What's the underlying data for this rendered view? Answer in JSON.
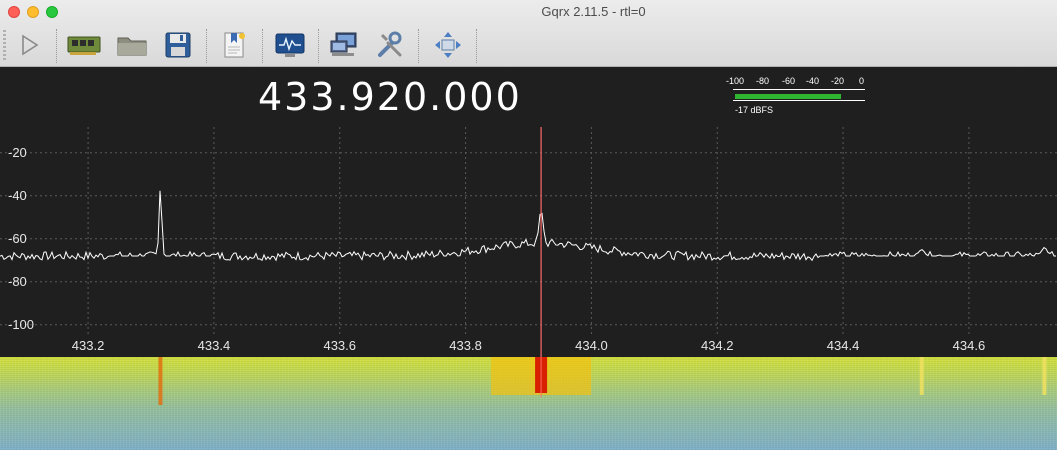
{
  "window": {
    "title": "Gqrx 2.11.5 - rtl=0"
  },
  "toolbar": {
    "buttons": [
      {
        "name": "start-dsp",
        "icon": "play-icon"
      },
      {
        "name": "io-devices",
        "icon": "hardware-card-icon"
      },
      {
        "name": "load-settings",
        "icon": "folder-icon"
      },
      {
        "name": "save-settings",
        "icon": "floppy-disk-icon"
      },
      {
        "name": "bookmarks",
        "icon": "bookmark-document-icon"
      },
      {
        "name": "fft-settings",
        "icon": "spectrum-monitor-icon"
      },
      {
        "name": "remote-control",
        "icon": "network-computer-icon"
      },
      {
        "name": "configure",
        "icon": "tools-icon"
      },
      {
        "name": "toggle-fullscreen",
        "icon": "resize-arrows-icon"
      }
    ]
  },
  "frequency": {
    "display": "433.920.000"
  },
  "meter": {
    "scale": [
      "-100",
      "-80",
      "-60",
      "-40",
      "-20",
      "0"
    ],
    "level_dbfs": -17,
    "label": "-17 dBFS",
    "bar_color": "#2fb52f"
  },
  "plot": {
    "y_ticks": [
      "-20",
      "-40",
      "-60",
      "-80",
      "-100"
    ],
    "x_ticks": [
      "433.2",
      "433.4",
      "433.6",
      "433.8",
      "434.0",
      "434.2",
      "434.4",
      "434.6"
    ],
    "marker_freq": 433.92,
    "marker_color": "#ff6a6a",
    "trace_color": "#ffffff",
    "bg_color": "#1f1f1f",
    "grid_color": "#5a5a5a"
  },
  "chart_data": {
    "type": "line",
    "title": "",
    "xlabel": "",
    "ylabel": "",
    "xlim": [
      433.06,
      434.74
    ],
    "ylim": [
      -115,
      -8
    ],
    "noise_floor_db": -68,
    "peaks": [
      {
        "x": 433.315,
        "y": -36
      },
      {
        "x": 433.92,
        "y": -47
      },
      {
        "x": 434.525,
        "y": -65
      },
      {
        "x": 434.72,
        "y": -64
      }
    ]
  },
  "waterfall": {
    "features": [
      {
        "x": 433.315,
        "color": "#e07010"
      },
      {
        "x": 433.92,
        "color": "#d82000"
      },
      {
        "x": 434.525,
        "color": "#f0e060"
      },
      {
        "x": 434.72,
        "color": "#f0e060"
      }
    ]
  }
}
